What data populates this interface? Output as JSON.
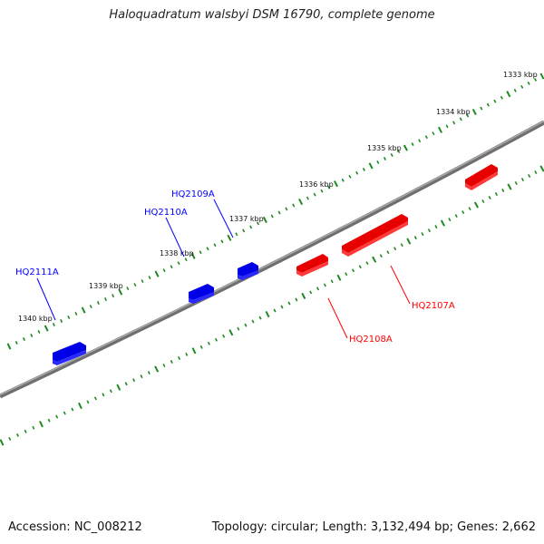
{
  "title": "Haloquadratum walsbyi DSM 16790, complete genome",
  "footer": {
    "accession": "Accession: NC_008212",
    "summary": "Topology: circular; Length: 3,132,494 bp; Genes: 2,662"
  },
  "colors": {
    "backbone": "#888888",
    "tick": "#1e8a1e",
    "forward_gene": "#0000ff",
    "reverse_gene": "#ff0000",
    "axis_label": "#111111"
  },
  "scale_labels": [
    "1333 kbp",
    "1334 kbp",
    "1335 kbp",
    "1336 kbp",
    "1337 kbp",
    "1338 kbp",
    "1339 kbp",
    "1340 kbp"
  ],
  "genes": [
    {
      "name": "HQ2111A",
      "strand": "forward"
    },
    {
      "name": "HQ2110A",
      "strand": "forward"
    },
    {
      "name": "HQ2109A",
      "strand": "forward"
    },
    {
      "name": "HQ2108A",
      "strand": "reverse"
    },
    {
      "name": "HQ2107A",
      "strand": "reverse"
    }
  ]
}
